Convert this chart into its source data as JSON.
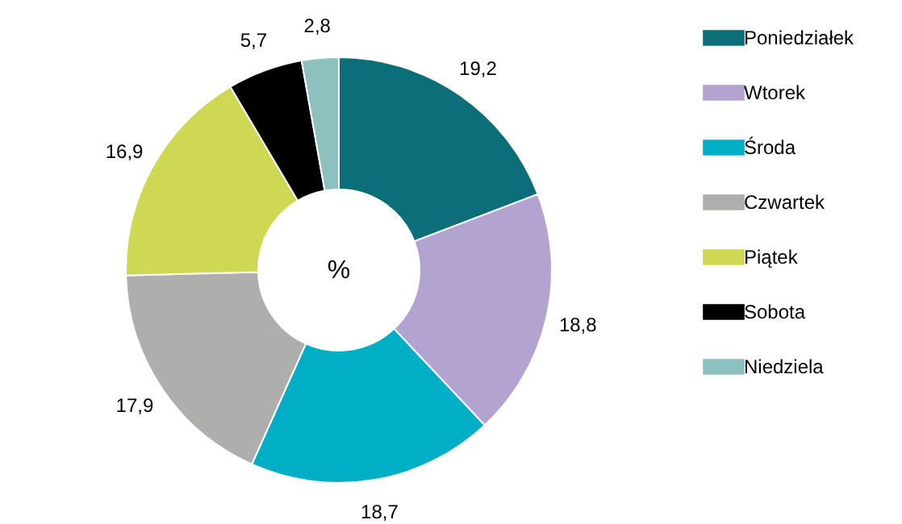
{
  "chart_data": {
    "type": "donut",
    "categories": [
      "Poniedziałek",
      "Wtorek",
      "Środa",
      "Czwartek",
      "Piątek",
      "Sobota",
      "Niedziela"
    ],
    "values": [
      19.2,
      18.8,
      18.7,
      17.9,
      16.9,
      5.7,
      2.8
    ],
    "value_labels": [
      "19,2",
      "18,8",
      "18,7",
      "17,9",
      "16,9",
      "5,7",
      "2,8"
    ],
    "colors": [
      "#0b6e78",
      "#b3a3d1",
      "#00afc5",
      "#aeaeac",
      "#cfd852",
      "#000000",
      "#8dc1bf"
    ],
    "annotations": [
      "%"
    ],
    "legend": "right"
  }
}
